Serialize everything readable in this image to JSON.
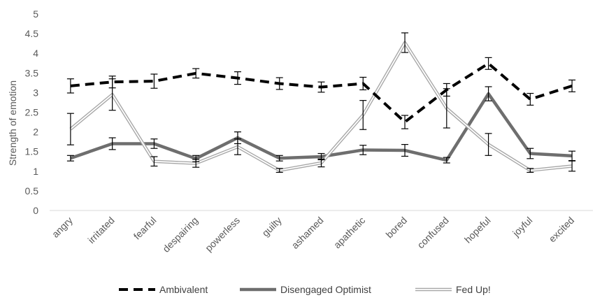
{
  "chart_data": {
    "type": "line",
    "title": "",
    "xlabel": "",
    "ylabel": "Strength of emotion",
    "ylim": [
      0,
      5
    ],
    "yticks": [
      "0",
      "0.5",
      "1",
      "1.5",
      "2",
      "2.5",
      "3",
      "3.5",
      "4",
      "4.5",
      "5"
    ],
    "grid": false,
    "legend_position": "bottom",
    "categories": [
      "angry",
      "irritated",
      "fearful",
      "despairing",
      "powerless",
      "guilty",
      "ashamed",
      "apathetic",
      "bored",
      "confused",
      "hopeful",
      "joyful",
      "excited"
    ],
    "series": [
      {
        "name": "Ambivalent",
        "style": "dashed",
        "color": "#000000",
        "values": [
          3.17,
          3.27,
          3.29,
          3.49,
          3.37,
          3.23,
          3.14,
          3.23,
          2.25,
          3.07,
          3.74,
          2.83,
          3.17
        ],
        "error": [
          0.18,
          0.15,
          0.18,
          0.12,
          0.16,
          0.15,
          0.13,
          0.16,
          0.17,
          0.16,
          0.15,
          0.15,
          0.15
        ]
      },
      {
        "name": "Disengaged Optimist",
        "style": "thick",
        "color": "#6e6e6e",
        "values": [
          1.33,
          1.7,
          1.7,
          1.32,
          1.85,
          1.33,
          1.37,
          1.54,
          1.53,
          1.28,
          2.97,
          1.45,
          1.39
        ],
        "error": [
          0.07,
          0.15,
          0.12,
          0.08,
          0.15,
          0.07,
          0.08,
          0.12,
          0.15,
          0.07,
          0.18,
          0.13,
          0.12
        ]
      },
      {
        "name": "Fed Up!",
        "style": "double",
        "color": "#a6a6a6",
        "values": [
          2.07,
          2.95,
          1.25,
          1.2,
          1.62,
          1.02,
          1.21,
          2.43,
          4.27,
          2.6,
          1.68,
          1.02,
          1.13
        ],
        "error": [
          0.4,
          0.4,
          0.12,
          0.1,
          0.2,
          0.05,
          0.1,
          0.37,
          0.25,
          0.5,
          0.28,
          0.05,
          0.13
        ]
      }
    ]
  }
}
